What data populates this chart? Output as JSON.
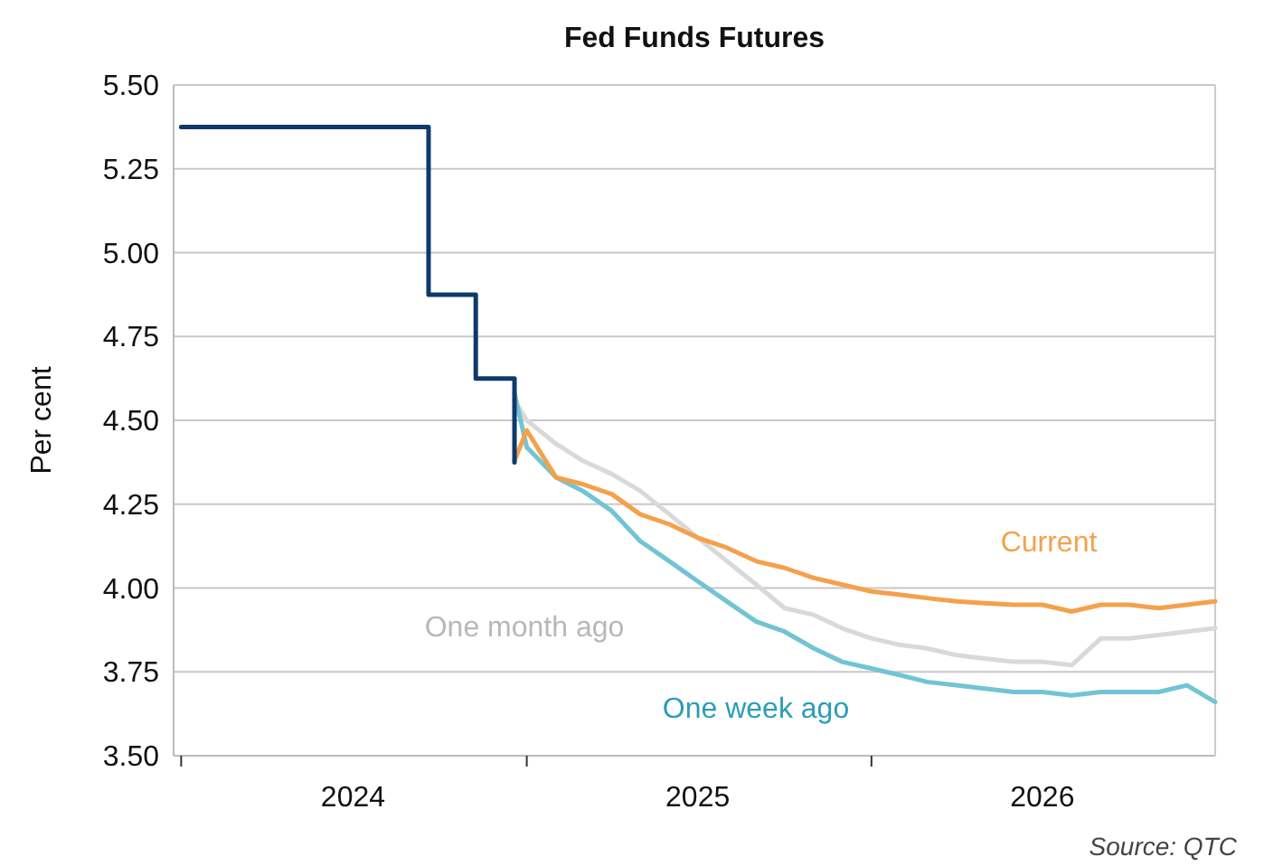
{
  "chart_data": {
    "type": "line",
    "title": "Fed Funds Futures",
    "ylabel": "Per cent",
    "annotations": [
      "Source: QTC"
    ],
    "xlim": [
      "2023-12-24",
      "2026-12-31"
    ],
    "xticks": [
      {
        "value": "2024-01-01",
        "label": null
      },
      {
        "value": "2024-07-01",
        "label": "2024"
      },
      {
        "value": "2025-01-01",
        "label": null
      },
      {
        "value": "2025-07-01",
        "label": "2025"
      },
      {
        "value": "2026-01-01",
        "label": null
      },
      {
        "value": "2026-07-01",
        "label": "2026"
      }
    ],
    "ylim": [
      3.5,
      5.5
    ],
    "yticks": [
      {
        "value": 3.5,
        "label": "3.50"
      },
      {
        "value": 3.75,
        "label": "3.75"
      },
      {
        "value": 4,
        "label": "4.00"
      },
      {
        "value": 4.25,
        "label": "4.25"
      },
      {
        "value": 4.5,
        "label": "4.50"
      },
      {
        "value": 4.75,
        "label": "4.75"
      },
      {
        "value": 5,
        "label": "5.00"
      },
      {
        "value": 5.25,
        "label": "5.25"
      },
      {
        "value": 5.5,
        "label": "5.50"
      }
    ],
    "grid": "y",
    "series": [
      {
        "name": "One month ago",
        "color": "#d9d9d9",
        "x": [
          "2024-12-19",
          "2025-01",
          "2025-02",
          "2025-03",
          "2025-04",
          "2025-05",
          "2025-06",
          "2025-07",
          "2025-08",
          "2025-09",
          "2025-10",
          "2025-11",
          "2025-12",
          "2026-01",
          "2026-02",
          "2026-03",
          "2026-04",
          "2026-05",
          "2026-06",
          "2026-07",
          "2026-08",
          "2026-09",
          "2026-10",
          "2026-11",
          "2026-12-31"
        ],
        "values": [
          4.56,
          4.5,
          4.43,
          4.38,
          4.34,
          4.29,
          4.22,
          4.15,
          4.08,
          4.01,
          3.94,
          3.92,
          3.88,
          3.85,
          3.83,
          3.82,
          3.8,
          3.79,
          3.78,
          3.78,
          3.77,
          3.85,
          3.85,
          3.86,
          3.88
        ]
      },
      {
        "name": "One week ago",
        "color": "#72c4d4",
        "x": [
          "2024-12-19",
          "2025-01",
          "2025-02",
          "2025-03",
          "2025-04",
          "2025-05",
          "2025-06",
          "2025-07",
          "2025-08",
          "2025-09",
          "2025-10",
          "2025-11",
          "2025-12",
          "2026-01",
          "2026-02",
          "2026-03",
          "2026-04",
          "2026-05",
          "2026-06",
          "2026-07",
          "2026-08",
          "2026-09",
          "2026-10",
          "2026-11",
          "2026-12",
          "2026-12-31"
        ],
        "values": [
          4.58,
          4.42,
          4.33,
          4.29,
          4.23,
          4.14,
          4.08,
          4.02,
          3.96,
          3.9,
          3.87,
          3.82,
          3.78,
          3.76,
          3.74,
          3.72,
          3.71,
          3.7,
          3.69,
          3.69,
          3.68,
          3.69,
          3.69,
          3.69,
          3.71,
          3.66
        ]
      },
      {
        "name": "Current",
        "color": "#f4a14c",
        "x": [
          "2024-12-19",
          "2025-01",
          "2025-02",
          "2025-03",
          "2025-04",
          "2025-05",
          "2025-06",
          "2025-07",
          "2025-08",
          "2025-09",
          "2025-10",
          "2025-11",
          "2025-12",
          "2026-01",
          "2026-02",
          "2026-03",
          "2026-04",
          "2026-05",
          "2026-06",
          "2026-07",
          "2026-08",
          "2026-09",
          "2026-10",
          "2026-11",
          "2026-12-31"
        ],
        "values": [
          4.38,
          4.47,
          4.33,
          4.31,
          4.28,
          4.22,
          4.19,
          4.15,
          4.12,
          4.08,
          4.06,
          4.03,
          4.01,
          3.99,
          3.98,
          3.97,
          3.96,
          3.955,
          3.95,
          3.95,
          3.93,
          3.95,
          3.95,
          3.94,
          3.96
        ]
      },
      {
        "type": "step",
        "color": "#0e3a6b",
        "x": [
          "2024-01-01",
          "2024-09-19",
          "2024-11-08",
          "2024-12-19"
        ],
        "values": [
          5.375,
          4.875,
          4.625,
          4.375
        ]
      }
    ]
  }
}
